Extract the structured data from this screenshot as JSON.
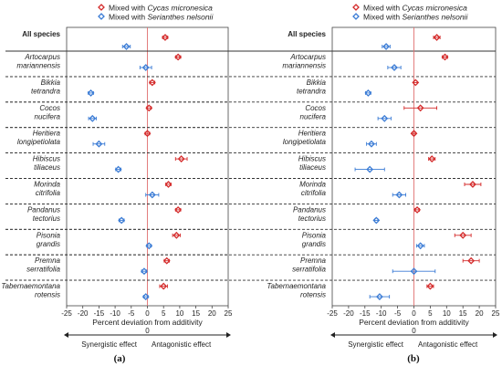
{
  "legend": {
    "cycas_prefix": "Mixed with ",
    "cycas_species": "Cycas micronesica",
    "serianthes_prefix": "Mixed with ",
    "serianthes_species": "Serianthes nelsonii"
  },
  "colors": {
    "cycas": "#d42a2a",
    "serianthes": "#3a7bd5",
    "zero_line": "#e07070"
  },
  "effects": {
    "left": "Synergistic effect",
    "right": "Antagonistic effect",
    "zero": "0"
  },
  "chart_data": [
    {
      "type": "scatter",
      "panel_label": "(a)",
      "xlabel": "Percent deviation from additivity",
      "xlim": [
        -25,
        25
      ],
      "xticks": [
        -25,
        -20,
        -15,
        -10,
        -5,
        0,
        5,
        10,
        15,
        20,
        25
      ],
      "rows": [
        {
          "label": [
            "All species"
          ],
          "bold": true,
          "cycas": {
            "v": 5.5,
            "e": 0.8
          },
          "serianthes": {
            "v": -6.5,
            "e": 1.2
          }
        },
        {
          "label": [
            "Artocarpus",
            "mariannensis"
          ],
          "cycas": {
            "v": 9.5,
            "e": 0.8
          },
          "serianthes": {
            "v": -0.5,
            "e": 1.8
          }
        },
        {
          "label": [
            "Bikkia",
            "tetrandra"
          ],
          "cycas": {
            "v": 1.5,
            "e": 0.8
          },
          "serianthes": {
            "v": -17.5,
            "e": 0.8
          }
        },
        {
          "label": [
            "Cocos",
            "nucifera"
          ],
          "cycas": {
            "v": 0.5,
            "e": 0.7
          },
          "serianthes": {
            "v": -17.0,
            "e": 1.2
          }
        },
        {
          "label": [
            "Heritiera",
            "longipetiolata"
          ],
          "cycas": {
            "v": 0.0,
            "e": 0.7
          },
          "serianthes": {
            "v": -15.0,
            "e": 1.8
          }
        },
        {
          "label": [
            "Hibiscus",
            "tiliaceus"
          ],
          "cycas": {
            "v": 10.5,
            "e": 1.8
          },
          "serianthes": {
            "v": -9.0,
            "e": 0.8
          }
        },
        {
          "label": [
            "Morinda",
            "citrifolia"
          ],
          "cycas": {
            "v": 6.5,
            "e": 0.8
          },
          "serianthes": {
            "v": 1.5,
            "e": 2.0
          }
        },
        {
          "label": [
            "Pandanus",
            "tectorius"
          ],
          "cycas": {
            "v": 9.5,
            "e": 0.8
          },
          "serianthes": {
            "v": -8.0,
            "e": 0.8
          }
        },
        {
          "label": [
            "Pisonia",
            "grandis"
          ],
          "cycas": {
            "v": 9.0,
            "e": 1.2
          },
          "serianthes": {
            "v": 0.5,
            "e": 0.7
          }
        },
        {
          "label": [
            "Premna",
            "serratifolia"
          ],
          "cycas": {
            "v": 6.0,
            "e": 0.8
          },
          "serianthes": {
            "v": -1.0,
            "e": 0.8
          }
        },
        {
          "label": [
            "Tabernaemontana",
            "rotensis"
          ],
          "cycas": {
            "v": 5.0,
            "e": 1.2
          },
          "serianthes": {
            "v": -0.5,
            "e": 0.7
          }
        }
      ]
    },
    {
      "type": "scatter",
      "panel_label": "(b)",
      "xlabel": "Percent deviation from additivity",
      "xlim": [
        -25,
        25
      ],
      "xticks": [
        -25,
        -20,
        -15,
        -10,
        -5,
        0,
        5,
        10,
        15,
        20,
        25
      ],
      "rows": [
        {
          "label": [
            "All species"
          ],
          "bold": true,
          "cycas": {
            "v": 7.0,
            "e": 1.0
          },
          "serianthes": {
            "v": -8.5,
            "e": 1.2
          }
        },
        {
          "label": [
            "Artocarpus",
            "mariannensis"
          ],
          "cycas": {
            "v": 9.5,
            "e": 0.8
          },
          "serianthes": {
            "v": -6.0,
            "e": 2.0
          }
        },
        {
          "label": [
            "Bikkia",
            "tetrandra"
          ],
          "cycas": {
            "v": 0.5,
            "e": 0.5
          },
          "serianthes": {
            "v": -14.0,
            "e": 0.8
          }
        },
        {
          "label": [
            "Cocos",
            "nucifera"
          ],
          "cycas": {
            "v": 2.0,
            "e": 5.0
          },
          "serianthes": {
            "v": -9.0,
            "e": 2.0
          }
        },
        {
          "label": [
            "Heritiera",
            "longipetiolata"
          ],
          "cycas": {
            "v": 0.0,
            "e": 0.5
          },
          "serianthes": {
            "v": -13.0,
            "e": 1.5
          }
        },
        {
          "label": [
            "Hibiscus",
            "tiliaceus"
          ],
          "cycas": {
            "v": 5.5,
            "e": 1.0
          },
          "serianthes": {
            "v": -13.5,
            "e": 4.5
          }
        },
        {
          "label": [
            "Morinda",
            "citrifolia"
          ],
          "cycas": {
            "v": 18.0,
            "e": 2.5
          },
          "serianthes": {
            "v": -4.5,
            "e": 2.0
          }
        },
        {
          "label": [
            "Pandanus",
            "tectorius"
          ],
          "cycas": {
            "v": 1.0,
            "e": 0.7
          },
          "serianthes": {
            "v": -11.5,
            "e": 0.5
          }
        },
        {
          "label": [
            "Pisonia",
            "grandis"
          ],
          "cycas": {
            "v": 15.0,
            "e": 2.5
          },
          "serianthes": {
            "v": 2.0,
            "e": 1.2
          }
        },
        {
          "label": [
            "Premna",
            "serratifolia"
          ],
          "cycas": {
            "v": 17.5,
            "e": 2.5
          },
          "serianthes": {
            "v": 0.0,
            "e": 6.5
          }
        },
        {
          "label": [
            "Tabernaemontana",
            "rotensis"
          ],
          "cycas": {
            "v": 5.0,
            "e": 1.0
          },
          "serianthes": {
            "v": -10.5,
            "e": 3.0
          }
        }
      ]
    }
  ]
}
